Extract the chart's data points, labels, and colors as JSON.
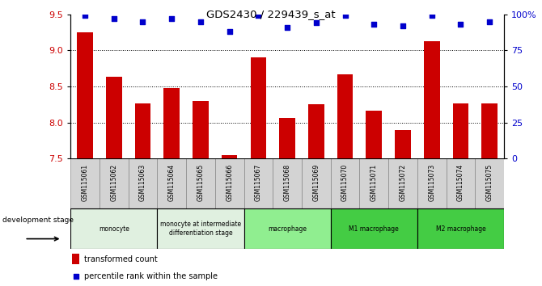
{
  "title": "GDS2430 / 229439_s_at",
  "samples": [
    "GSM115061",
    "GSM115062",
    "GSM115063",
    "GSM115064",
    "GSM115065",
    "GSM115066",
    "GSM115067",
    "GSM115068",
    "GSM115069",
    "GSM115070",
    "GSM115071",
    "GSM115072",
    "GSM115073",
    "GSM115074",
    "GSM115075"
  ],
  "bar_values": [
    9.25,
    8.63,
    8.27,
    8.48,
    8.3,
    7.55,
    8.9,
    8.07,
    8.25,
    8.67,
    8.17,
    7.9,
    9.13,
    8.27,
    8.27
  ],
  "percentile_values": [
    99,
    97,
    95,
    97,
    95,
    88,
    99,
    91,
    94,
    99,
    93,
    92,
    99,
    93,
    95
  ],
  "bar_color": "#cc0000",
  "percentile_color": "#0000cc",
  "ylim_left": [
    7.5,
    9.5
  ],
  "ylim_right": [
    0,
    100
  ],
  "yticks_left": [
    7.5,
    8.0,
    8.5,
    9.0,
    9.5
  ],
  "yticks_right": [
    0,
    25,
    50,
    75,
    100
  ],
  "yticklabels_right": [
    "0",
    "25",
    "50",
    "75",
    "100%"
  ],
  "grid_lines": [
    8.0,
    8.5,
    9.0
  ],
  "groups": [
    {
      "label": "monocyte",
      "start": 0,
      "end": 2,
      "color": "#e8f5e8"
    },
    {
      "label": "monocyte at intermediate\ndifferentiation stage",
      "start": 2,
      "end": 5,
      "color": "#e8f5e8"
    },
    {
      "label": "macrophage",
      "start": 5,
      "end": 9,
      "color": "#90ee90"
    },
    {
      "label": "M1 macrophage",
      "start": 9,
      "end": 12,
      "color": "#44cc44"
    },
    {
      "label": "M2 macrophage",
      "start": 12,
      "end": 15,
      "color": "#44cc44"
    }
  ],
  "legend_bar_label": "transformed count",
  "legend_pct_label": "percentile rank within the sample",
  "dev_stage_label": "development stage",
  "xtick_bg": "#d3d3d3",
  "xtick_edge": "#aaaaaa"
}
